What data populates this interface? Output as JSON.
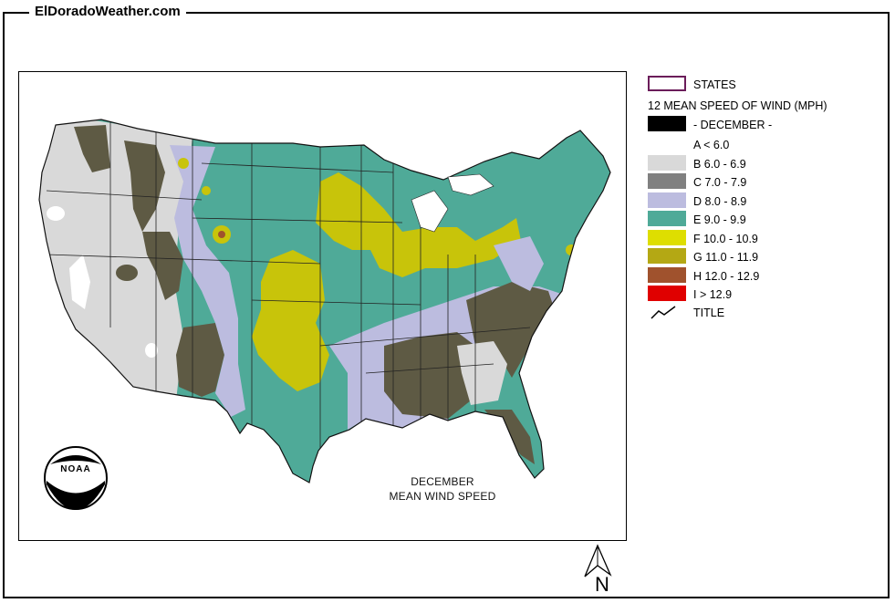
{
  "site": {
    "title": "ElDoradoWeather.com"
  },
  "map": {
    "caption_line1": "DECEMBER",
    "caption_line2": "MEAN WIND SPEED",
    "logo_text": "NOAA",
    "north_label": "N"
  },
  "legend": {
    "states_label": "STATES",
    "layer_title": "12 MEAN SPEED OF WIND (MPH)",
    "month_label": "- DECEMBER -",
    "classes": [
      {
        "label": "A < 6.0",
        "color": "#ffffff"
      },
      {
        "label": "B 6.0 - 6.9",
        "color": "#d9d9d9"
      },
      {
        "label": "C 7.0 - 7.9",
        "color": "#808080"
      },
      {
        "label": "D 8.0 - 8.9",
        "color": "#bcbcdf"
      },
      {
        "label": "E 9.0 - 9.9",
        "color": "#4faa98"
      },
      {
        "label": "F 10.0 - 10.9",
        "color": "#dede00"
      },
      {
        "label": "G 11.0 - 11.9",
        "color": "#b4a814"
      },
      {
        "label": "H 12.0 - 12.9",
        "color": "#a0522d"
      },
      {
        "label": "I > 12.9",
        "color": "#e00000"
      }
    ],
    "title_label": "TITLE"
  },
  "colors": {
    "states_outline": "#6b1d5a",
    "december_swatch": "#000000",
    "dark_olive": "#5e5a44",
    "background": "#ffffff"
  }
}
